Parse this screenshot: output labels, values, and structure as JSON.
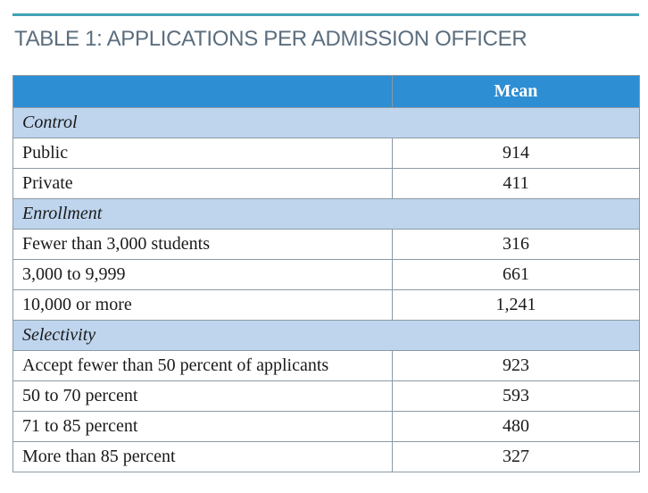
{
  "title": "TABLE 1: APPLICATIONS PER ADMISSION OFFICER",
  "table": {
    "header": {
      "label_col": "",
      "value_col": "Mean"
    },
    "groups": [
      {
        "name": "Control",
        "rows": [
          {
            "label": "Public",
            "value": "914"
          },
          {
            "label": "Private",
            "value": "411"
          }
        ]
      },
      {
        "name": "Enrollment",
        "rows": [
          {
            "label": "Fewer than 3,000 students",
            "value": "316"
          },
          {
            "label": "3,000 to 9,999",
            "value": "661"
          },
          {
            "label": "10,000 or more",
            "value": "1,241"
          }
        ]
      },
      {
        "name": "Selectivity",
        "rows": [
          {
            "label": "Accept fewer than 50 percent of applicants",
            "value": "923"
          },
          {
            "label": "50 to 70 percent",
            "value": "593"
          },
          {
            "label": "71 to 85 percent",
            "value": "480"
          },
          {
            "label": "More than 85 percent",
            "value": "327"
          }
        ]
      }
    ]
  },
  "colors": {
    "rule": "#3fa3b5",
    "title": "#5b6e7e",
    "header_bg": "#2d8ed4",
    "group_bg": "#bfd5ee",
    "border": "#8c9aa5"
  }
}
